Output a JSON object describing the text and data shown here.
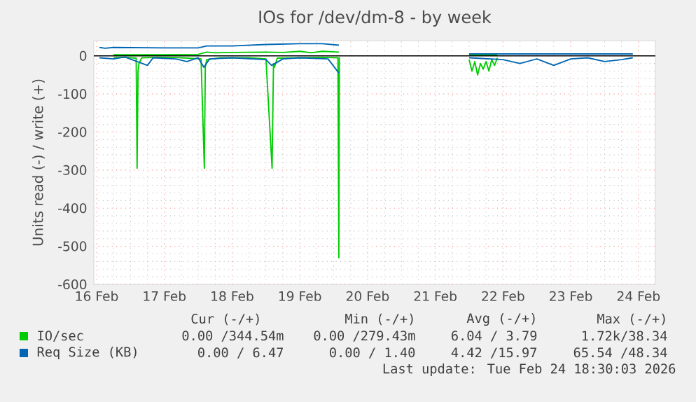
{
  "chart_data": {
    "type": "line",
    "title": "IOs for /dev/dm-8 - by week",
    "ylabel": "Units read (-) / write (+)",
    "xlim": [
      "2026-02-15T23:00",
      "2026-02-24T06:00"
    ],
    "ylim": [
      -600,
      40
    ],
    "xticks": [
      {
        "value": "2026-02-16",
        "label": "16 Feb"
      },
      {
        "value": "2026-02-17",
        "label": "17 Feb"
      },
      {
        "value": "2026-02-18",
        "label": "18 Feb"
      },
      {
        "value": "2026-02-19",
        "label": "19 Feb"
      },
      {
        "value": "2026-02-20",
        "label": "20 Feb"
      },
      {
        "value": "2026-02-21",
        "label": "21 Feb"
      },
      {
        "value": "2026-02-22",
        "label": "22 Feb"
      },
      {
        "value": "2026-02-23",
        "label": "23 Feb"
      },
      {
        "value": "2026-02-24",
        "label": "24 Feb"
      }
    ],
    "yticks": [
      -600,
      -500,
      -400,
      -300,
      -200,
      -100,
      0
    ],
    "grid": true,
    "legend": "bottom",
    "ref_lines": [
      {
        "axis": "y",
        "value": 0,
        "color": "#000000"
      }
    ],
    "series": [
      {
        "name": "IO/sec",
        "color": "#00cc00",
        "x": [
          "2026-02-16T06:00",
          "2026-02-16T12:00",
          "2026-02-17T00:00",
          "2026-02-17T12:00",
          "2026-02-17T15:00",
          "2026-02-17T18:00",
          "2026-02-18T00:00",
          "2026-02-18T12:00",
          "2026-02-18T18:00",
          "2026-02-19T00:00",
          "2026-02-19T04:00",
          "2026-02-19T08:00",
          "2026-02-19T13:50",
          "2026-02-20T12:00",
          "2026-02-21T12:00",
          "2026-02-21T16:00",
          "2026-02-21T22:00"
        ],
        "values": [
          3,
          3,
          3,
          4,
          10,
          8,
          9,
          10,
          9,
          12,
          8,
          12,
          10,
          null,
          3,
          3,
          3
        ]
      },
      {
        "color": "#00cc00",
        "x": [
          "2026-02-16T06:00",
          "2026-02-16T10:00",
          "2026-02-16T14:00",
          "2026-02-16T14:20",
          "2026-02-16T14:40",
          "2026-02-16T15:00",
          "2026-02-16T16:00",
          "2026-02-16T22:00",
          "2026-02-17T06:00",
          "2026-02-17T13:00",
          "2026-02-17T14:10",
          "2026-02-17T14:30",
          "2026-02-17T15:00",
          "2026-02-17T20:00",
          "2026-02-18T06:00",
          "2026-02-18T12:00",
          "2026-02-18T14:10",
          "2026-02-18T14:40",
          "2026-02-18T15:00",
          "2026-02-18T16:00",
          "2026-02-19T00:00",
          "2026-02-19T08:00",
          "2026-02-19T13:30",
          "2026-02-19T13:50",
          "2026-02-19T14:00",
          "2026-02-20T12:00",
          "2026-02-21T12:00",
          "2026-02-21T13:00",
          "2026-02-21T14:00",
          "2026-02-21T15:00",
          "2026-02-21T16:00",
          "2026-02-21T17:00",
          "2026-02-21T18:00",
          "2026-02-21T19:00",
          "2026-02-21T20:00",
          "2026-02-21T21:00",
          "2026-02-21T22:00"
        ],
        "values": [
          -5,
          -4,
          -6,
          -295,
          -40,
          -20,
          -5,
          -4,
          -5,
          -8,
          -295,
          -30,
          -10,
          -5,
          -5,
          -8,
          -295,
          -20,
          -30,
          -6,
          -5,
          -4,
          -5,
          -530,
          -3,
          null,
          -10,
          -40,
          -15,
          -50,
          -20,
          -35,
          -15,
          -40,
          -10,
          -25,
          -5
        ]
      },
      {
        "name": "Req Size (KB)",
        "color": "#0066b3",
        "x": [
          "2026-02-16T01:00",
          "2026-02-16T03:00",
          "2026-02-16T06:00",
          "2026-02-17T00:00",
          "2026-02-17T12:00",
          "2026-02-17T15:00",
          "2026-02-18T00:00",
          "2026-02-18T12:00",
          "2026-02-19T00:00",
          "2026-02-19T08:00",
          "2026-02-19T13:50",
          "2026-02-20T12:00",
          "2026-02-21T12:00",
          "2026-02-22T00:00",
          "2026-02-23T00:00",
          "2026-02-23T22:00"
        ],
        "values": [
          22,
          20,
          22,
          21,
          21,
          26,
          26,
          30,
          32,
          32,
          28,
          null,
          5,
          5,
          5,
          5
        ]
      },
      {
        "color": "#0066b3",
        "x": [
          "2026-02-16T01:00",
          "2026-02-16T06:00",
          "2026-02-16T10:00",
          "2026-02-16T18:00",
          "2026-02-16T20:00",
          "2026-02-17T04:00",
          "2026-02-17T08:00",
          "2026-02-17T12:00",
          "2026-02-17T14:00",
          "2026-02-17T16:00",
          "2026-02-18T00:00",
          "2026-02-18T12:00",
          "2026-02-18T14:00",
          "2026-02-18T18:00",
          "2026-02-19T00:00",
          "2026-02-19T10:00",
          "2026-02-19T13:50",
          "2026-02-20T12:00",
          "2026-02-21T12:00",
          "2026-02-22T00:00",
          "2026-02-22T06:00",
          "2026-02-22T12:00",
          "2026-02-22T18:00",
          "2026-02-23T00:00",
          "2026-02-23T06:00",
          "2026-02-23T12:00",
          "2026-02-23T18:00",
          "2026-02-23T22:00"
        ],
        "values": [
          -5,
          -8,
          -3,
          -25,
          -5,
          -8,
          -15,
          -5,
          -30,
          -8,
          -5,
          -10,
          -25,
          -8,
          -5,
          -8,
          -45,
          null,
          -5,
          -10,
          -20,
          -8,
          -25,
          -8,
          -5,
          -15,
          -10,
          -5
        ]
      }
    ],
    "annotations": [
      "Cur (-/+)",
      "Min (-/+)",
      "Avg (-/+)",
      "Max (-/+)",
      "0.00 /344.54m",
      "0.00 /279.43m",
      "6.04 / 3.79",
      "1.72k/38.34",
      "0.00 / 6.47",
      "0.00 / 1.40",
      "4.42 /15.97",
      "65.54 /48.34",
      "Last update: Tue Feb 24 18:30:03 2026"
    ]
  }
}
